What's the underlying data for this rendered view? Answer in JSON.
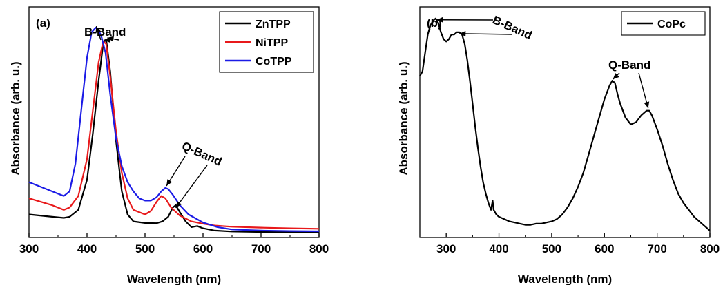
{
  "chart_data": [
    {
      "type": "line",
      "panel_label": "(a)",
      "xlabel": "Wavelength (nm)",
      "ylabel": "Absorbance (arb. u.)",
      "xlim": [
        300,
        800
      ],
      "ylim": [
        0,
        1.0
      ],
      "xticks": [
        300,
        400,
        500,
        600,
        700,
        800
      ],
      "y_tick_labels": false,
      "legend_position": "top-right",
      "series": [
        {
          "name": "ZnTPP",
          "color": "#000000",
          "x": [
            300,
            340,
            360,
            370,
            385,
            400,
            410,
            420,
            428,
            433,
            440,
            450,
            460,
            470,
            480,
            500,
            520,
            530,
            540,
            548,
            553,
            560,
            570,
            580,
            590,
            600,
            620,
            650,
            700,
            750,
            800
          ],
          "y": [
            0.1,
            0.09,
            0.085,
            0.09,
            0.12,
            0.25,
            0.45,
            0.68,
            0.84,
            0.86,
            0.72,
            0.42,
            0.2,
            0.1,
            0.07,
            0.063,
            0.062,
            0.07,
            0.09,
            0.13,
            0.14,
            0.11,
            0.07,
            0.045,
            0.05,
            0.04,
            0.03,
            0.026,
            0.024,
            0.023,
            0.022
          ]
        },
        {
          "name": "NiTPP",
          "color": "#e8191b",
          "x": [
            300,
            340,
            360,
            370,
            385,
            400,
            410,
            420,
            428,
            433,
            440,
            450,
            460,
            470,
            480,
            500,
            510,
            520,
            528,
            535,
            545,
            560,
            580,
            600,
            620,
            650,
            700,
            750,
            800
          ],
          "y": [
            0.17,
            0.14,
            0.12,
            0.13,
            0.18,
            0.34,
            0.55,
            0.76,
            0.85,
            0.84,
            0.7,
            0.46,
            0.28,
            0.17,
            0.12,
            0.1,
            0.115,
            0.155,
            0.18,
            0.17,
            0.13,
            0.095,
            0.07,
            0.06,
            0.052,
            0.047,
            0.043,
            0.04,
            0.038
          ]
        },
        {
          "name": "CoTPP",
          "color": "#1b1be6",
          "x": [
            300,
            340,
            360,
            370,
            380,
            390,
            400,
            408,
            415,
            420,
            425,
            432,
            440,
            450,
            460,
            470,
            480,
            490,
            500,
            510,
            520,
            528,
            535,
            540,
            548,
            560,
            575,
            600,
            625,
            650,
            700,
            750,
            800
          ],
          "y": [
            0.24,
            0.2,
            0.18,
            0.2,
            0.32,
            0.55,
            0.78,
            0.89,
            0.91,
            0.9,
            0.87,
            0.8,
            0.62,
            0.43,
            0.31,
            0.24,
            0.2,
            0.17,
            0.16,
            0.16,
            0.175,
            0.2,
            0.215,
            0.21,
            0.185,
            0.14,
            0.1,
            0.065,
            0.045,
            0.035,
            0.03,
            0.028,
            0.027
          ]
        }
      ],
      "annotations": [
        {
          "text": "B-Band"
        },
        {
          "text": "Q-Band"
        }
      ]
    },
    {
      "type": "line",
      "panel_label": "(b)",
      "xlabel": "Wavelength (nm)",
      "ylabel": "Absorbance (arb. u.)",
      "xlim": [
        250,
        800
      ],
      "ylim": [
        0,
        1.0
      ],
      "xticks": [
        300,
        400,
        500,
        600,
        700,
        800
      ],
      "y_tick_labels": false,
      "legend_position": "top-right",
      "series": [
        {
          "name": "CoPc",
          "color": "#000000",
          "x": [
            250,
            255,
            260,
            265,
            270,
            275,
            280,
            285,
            290,
            295,
            300,
            305,
            310,
            315,
            320,
            325,
            330,
            335,
            340,
            345,
            350,
            355,
            360,
            365,
            370,
            375,
            380,
            385,
            388,
            390,
            395,
            400,
            410,
            420,
            430,
            440,
            450,
            460,
            470,
            480,
            490,
            500,
            510,
            520,
            530,
            540,
            550,
            560,
            570,
            580,
            590,
            600,
            610,
            615,
            620,
            625,
            630,
            640,
            650,
            660,
            670,
            680,
            685,
            690,
            700,
            710,
            720,
            730,
            740,
            750,
            760,
            770,
            780,
            790,
            800
          ],
          "y": [
            0.7,
            0.72,
            0.8,
            0.88,
            0.92,
            0.94,
            0.95,
            0.93,
            0.89,
            0.86,
            0.85,
            0.86,
            0.88,
            0.88,
            0.89,
            0.89,
            0.88,
            0.84,
            0.77,
            0.68,
            0.58,
            0.48,
            0.39,
            0.31,
            0.24,
            0.19,
            0.15,
            0.12,
            0.16,
            0.12,
            0.1,
            0.09,
            0.08,
            0.07,
            0.065,
            0.06,
            0.055,
            0.055,
            0.06,
            0.06,
            0.065,
            0.07,
            0.08,
            0.1,
            0.13,
            0.17,
            0.22,
            0.28,
            0.36,
            0.44,
            0.52,
            0.6,
            0.66,
            0.68,
            0.67,
            0.62,
            0.58,
            0.52,
            0.49,
            0.5,
            0.53,
            0.55,
            0.55,
            0.53,
            0.47,
            0.4,
            0.32,
            0.25,
            0.19,
            0.15,
            0.12,
            0.09,
            0.07,
            0.05,
            0.03
          ]
        }
      ],
      "annotations": [
        {
          "text": "B-Band"
        },
        {
          "text": "Q-Band"
        }
      ]
    }
  ]
}
